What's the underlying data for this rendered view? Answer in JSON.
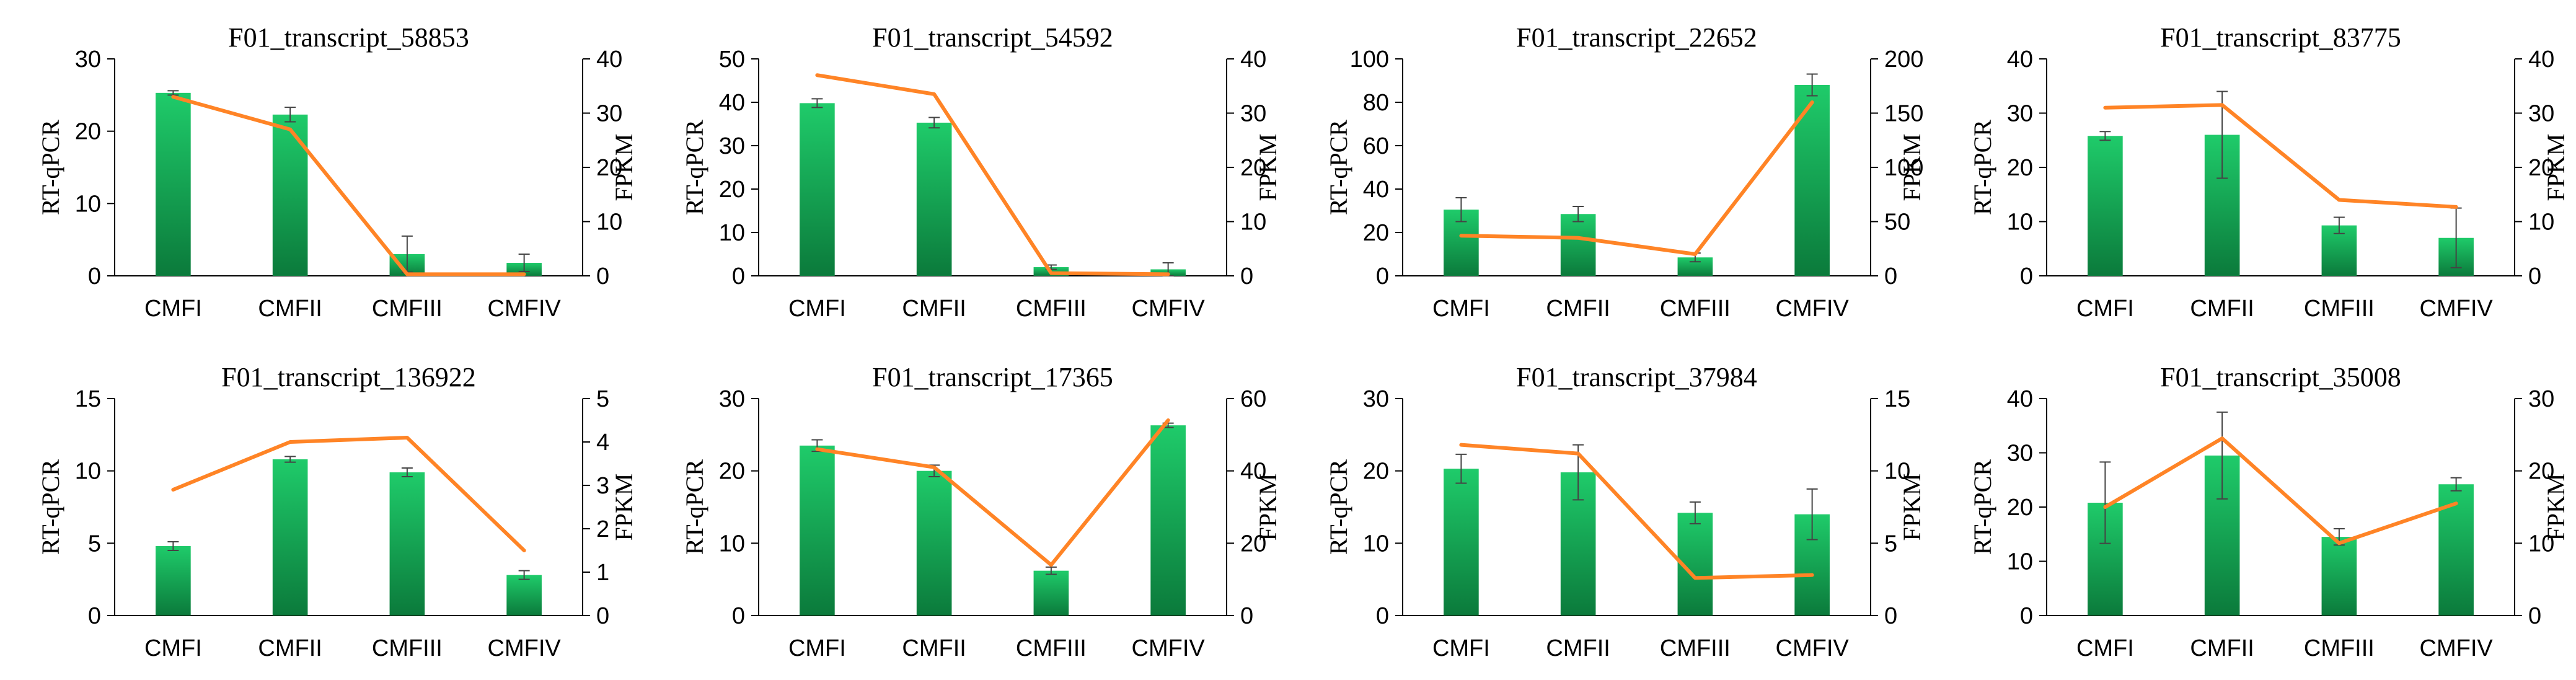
{
  "colors": {
    "bar_top": "#1fcb6a",
    "bar_bottom": "#0b7a3b",
    "line": "#ff8426",
    "axis": "#000000",
    "error": "#444444"
  },
  "chart_data": [
    {
      "type": "bar+line",
      "title": "F01_transcript_58853",
      "categories": [
        "CMFI",
        "CMFII",
        "CMFIII",
        "CMFIV"
      ],
      "series": [
        {
          "name": "RT-qPCR",
          "axis": "left",
          "values": [
            25.3,
            22.3,
            3.0,
            1.8
          ],
          "errors": [
            0.3,
            1.0,
            2.5,
            1.2
          ]
        },
        {
          "name": "FPKM",
          "axis": "right",
          "values": [
            33.0,
            27.0,
            0.3,
            0.3
          ]
        }
      ],
      "ylabel": "RT-qPCR",
      "y2label": "FPKM",
      "ylim": [
        0,
        30
      ],
      "yticks": [
        0,
        10,
        20,
        30
      ],
      "y2lim": [
        0,
        40
      ],
      "y2ticks": [
        0,
        10,
        20,
        30,
        40
      ]
    },
    {
      "type": "bar+line",
      "title": "F01_transcript_54592",
      "categories": [
        "CMFI",
        "CMFII",
        "CMFIII",
        "CMFIV"
      ],
      "series": [
        {
          "name": "RT-qPCR",
          "axis": "left",
          "values": [
            39.8,
            35.3,
            2.0,
            1.5
          ],
          "errors": [
            1.0,
            1.2,
            0.5,
            1.5
          ]
        },
        {
          "name": "FPKM",
          "axis": "right",
          "values": [
            37.0,
            33.5,
            0.5,
            0.3
          ]
        }
      ],
      "ylabel": "RT-qPCR",
      "y2label": "FPKM",
      "ylim": [
        0,
        50
      ],
      "yticks": [
        0,
        10,
        20,
        30,
        40,
        50
      ],
      "y2lim": [
        0,
        40
      ],
      "y2ticks": [
        0,
        10,
        20,
        30,
        40
      ]
    },
    {
      "type": "bar+line",
      "title": "F01_transcript_22652",
      "categories": [
        "CMFI",
        "CMFII",
        "CMFIII",
        "CMFIV"
      ],
      "series": [
        {
          "name": "RT-qPCR",
          "axis": "left",
          "values": [
            30.5,
            28.5,
            8.5,
            88.0
          ],
          "errors": [
            5.5,
            3.5,
            2.0,
            5.0
          ]
        },
        {
          "name": "FPKM",
          "axis": "right",
          "values": [
            37.0,
            35.0,
            20.0,
            160.0
          ]
        }
      ],
      "ylabel": "RT-qPCR",
      "y2label": "FPKM",
      "ylim": [
        0,
        100
      ],
      "yticks": [
        0,
        20,
        40,
        60,
        80,
        100
      ],
      "y2lim": [
        0,
        200
      ],
      "y2ticks": [
        0,
        50,
        100,
        150,
        200
      ]
    },
    {
      "type": "bar+line",
      "title": "F01_transcript_83775",
      "categories": [
        "CMFI",
        "CMFII",
        "CMFIII",
        "CMFIV"
      ],
      "series": [
        {
          "name": "RT-qPCR",
          "axis": "left",
          "values": [
            25.8,
            26.0,
            9.3,
            7.0
          ],
          "errors": [
            0.8,
            8.0,
            1.5,
            5.5
          ]
        },
        {
          "name": "FPKM",
          "axis": "right",
          "values": [
            31.0,
            31.5,
            14.0,
            12.7
          ]
        }
      ],
      "ylabel": "RT-qPCR",
      "y2label": "FPKM",
      "ylim": [
        0,
        40
      ],
      "yticks": [
        0,
        10,
        20,
        30,
        40
      ],
      "y2lim": [
        0,
        40
      ],
      "y2ticks": [
        0,
        10,
        20,
        30,
        40
      ]
    },
    {
      "type": "bar+line",
      "title": "F01_transcript_136922",
      "categories": [
        "CMFI",
        "CMFII",
        "CMFIII",
        "CMFIV"
      ],
      "series": [
        {
          "name": "RT-qPCR",
          "axis": "left",
          "values": [
            4.8,
            10.8,
            9.9,
            2.8
          ],
          "errors": [
            0.3,
            0.2,
            0.3,
            0.3
          ]
        },
        {
          "name": "FPKM",
          "axis": "right",
          "values": [
            2.9,
            4.0,
            4.1,
            1.5
          ]
        }
      ],
      "ylabel": "RT-qPCR",
      "y2label": "FPKM",
      "ylim": [
        0,
        15
      ],
      "yticks": [
        0,
        5,
        10,
        15
      ],
      "y2lim": [
        0,
        5
      ],
      "y2ticks": [
        0,
        1,
        2,
        3,
        4,
        5
      ]
    },
    {
      "type": "bar+line",
      "title": "F01_transcript_17365",
      "categories": [
        "CMFI",
        "CMFII",
        "CMFIII",
        "CMFIV"
      ],
      "series": [
        {
          "name": "RT-qPCR",
          "axis": "left",
          "values": [
            23.5,
            20.0,
            6.2,
            26.3
          ],
          "errors": [
            0.8,
            0.8,
            0.5,
            0.3
          ]
        },
        {
          "name": "FPKM",
          "axis": "right",
          "values": [
            46.0,
            41.0,
            14.0,
            54.0
          ]
        }
      ],
      "ylabel": "RT-qPCR",
      "y2label": "FPKM",
      "ylim": [
        0,
        30
      ],
      "yticks": [
        0,
        10,
        20,
        30
      ],
      "y2lim": [
        0,
        60
      ],
      "y2ticks": [
        0,
        20,
        40,
        60
      ]
    },
    {
      "type": "bar+line",
      "title": "F01_transcript_37984",
      "categories": [
        "CMFI",
        "CMFII",
        "CMFIII",
        "CMFIV"
      ],
      "series": [
        {
          "name": "RT-qPCR",
          "axis": "left",
          "values": [
            20.3,
            19.8,
            14.2,
            14.0
          ],
          "errors": [
            2.0,
            3.8,
            1.5,
            3.5
          ]
        },
        {
          "name": "FPKM",
          "axis": "right",
          "values": [
            11.8,
            11.2,
            2.6,
            2.8
          ]
        }
      ],
      "ylabel": "RT-qPCR",
      "y2label": "FPKM",
      "ylim": [
        0,
        30
      ],
      "yticks": [
        0,
        10,
        20,
        30
      ],
      "y2lim": [
        0,
        15
      ],
      "y2ticks": [
        0,
        5,
        10,
        15
      ]
    },
    {
      "type": "bar+line",
      "title": "F01_transcript_35008",
      "categories": [
        "CMFI",
        "CMFII",
        "CMFIII",
        "CMFIV"
      ],
      "series": [
        {
          "name": "RT-qPCR",
          "axis": "left",
          "values": [
            20.8,
            29.5,
            14.5,
            24.2
          ],
          "errors": [
            7.5,
            8.0,
            1.5,
            1.2
          ]
        },
        {
          "name": "FPKM",
          "axis": "right",
          "values": [
            15.0,
            24.5,
            10.0,
            15.5
          ]
        }
      ],
      "ylabel": "RT-qPCR",
      "y2label": "FPKM",
      "ylim": [
        0,
        40
      ],
      "yticks": [
        0,
        10,
        20,
        30,
        40
      ],
      "y2lim": [
        0,
        30
      ],
      "y2ticks": [
        0,
        10,
        20,
        30
      ]
    }
  ]
}
